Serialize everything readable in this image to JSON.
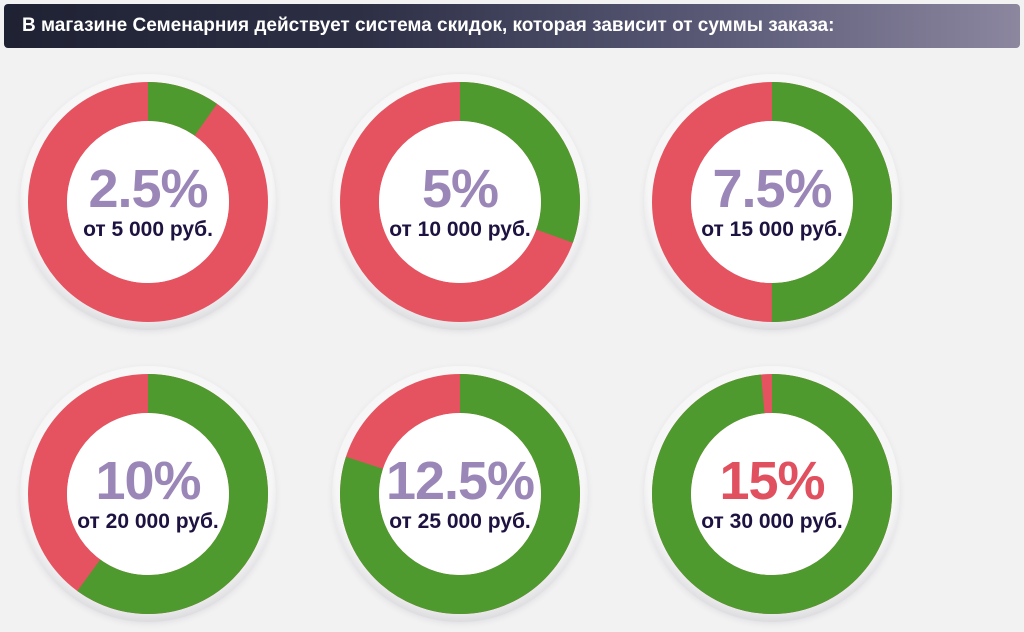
{
  "header": {
    "title": "В магазине Семенарния действует система скидок, которая зависит от суммы заказа:"
  },
  "colors": {
    "progress": "#4e9a2e",
    "remainder": "#e55361",
    "percent_text": "#9b86b8",
    "percent_text_max": "#e0505f",
    "threshold_text": "#1e1240"
  },
  "badges": [
    {
      "percent": "2.5%",
      "threshold": "от 5 000 руб.",
      "progress": 0.0975
    },
    {
      "percent": "5%",
      "threshold": "от 10 000 руб.",
      "progress": 0.305
    },
    {
      "percent": "7.5%",
      "threshold": "от 15 000 руб.",
      "progress": 0.5
    },
    {
      "percent": "10%",
      "threshold": "от 20 000 руб.",
      "progress": 0.6
    },
    {
      "percent": "12.5%",
      "threshold": "от 25 000 руб.",
      "progress": 0.8
    },
    {
      "percent": "15%",
      "threshold": "от 30 000 руб.",
      "progress": 0.985
    }
  ]
}
